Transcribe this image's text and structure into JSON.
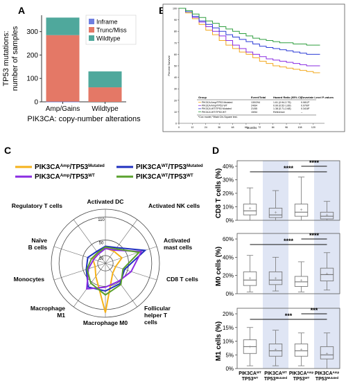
{
  "panels": {
    "A": "A",
    "B": "B",
    "C": "C",
    "D": "D"
  },
  "chart_data": [
    {
      "id": "A",
      "type": "bar",
      "stacked": true,
      "categories": [
        "Amp/Gains",
        "Wildtype"
      ],
      "series": [
        {
          "name": "Inframe",
          "color": "#6f7fe0",
          "values": [
            1,
            0
          ]
        },
        {
          "name": "Trunc/Miss",
          "color": "#e47866",
          "values": [
            284,
            62
          ]
        },
        {
          "name": "Wildtype",
          "color": "#4fa89c",
          "values": [
            75,
            68
          ]
        }
      ],
      "ylabel_line1": "TP53 mutations:",
      "ylabel_line2": "number of samples",
      "xlabel": "PIK3CA: copy-number alterations",
      "yticks": [
        0,
        100,
        200,
        300
      ],
      "ylim": [
        0,
        370
      ],
      "legend_position": "top-right"
    },
    {
      "id": "B",
      "type": "line",
      "ylabel": "Percent Survival",
      "xlabel": "Months",
      "xticks": [
        "0",
        "12",
        "24",
        "36",
        "48",
        "60",
        "72",
        "84",
        "96",
        "108",
        "120"
      ],
      "yticks": [
        "0",
        "10",
        "20",
        "30",
        "40",
        "50",
        "60",
        "70",
        "80",
        "90",
        "100"
      ],
      "xlim": [
        0,
        130
      ],
      "ylim": [
        0,
        100
      ],
      "series": [
        {
          "name": "PIK3CA Amp/TP53 Mutated",
          "color": "#f2a81c",
          "x": [
            0,
            6,
            12,
            18,
            24,
            30,
            36,
            42,
            48,
            54,
            60,
            66,
            72,
            78,
            84,
            90,
            96,
            102,
            108,
            114,
            120,
            126
          ],
          "y": [
            100,
            96,
            91,
            86,
            81,
            77,
            72,
            68,
            65,
            62,
            60,
            57,
            54,
            52,
            50,
            49,
            48,
            47,
            46,
            45,
            44,
            44
          ]
        },
        {
          "name": "PIK3CA Amp/TP53 WT",
          "color": "#8a2be2",
          "x": [
            0,
            6,
            12,
            18,
            24,
            30,
            36,
            42,
            48,
            54,
            60,
            66,
            72,
            78,
            84,
            90,
            96,
            102,
            108,
            114,
            120,
            126
          ],
          "y": [
            100,
            97,
            92,
            88,
            84,
            80,
            76,
            72,
            68,
            65,
            62,
            60,
            58,
            56,
            55,
            54,
            53,
            52,
            51,
            50,
            50,
            50
          ]
        },
        {
          "name": "PIK3CA WT/TP53 Mutated",
          "color": "#2b3bd6",
          "x": [
            0,
            6,
            12,
            18,
            24,
            30,
            36,
            42,
            48,
            54,
            60,
            66,
            72,
            78,
            84,
            90,
            96,
            102,
            108,
            114,
            120,
            126
          ],
          "y": [
            100,
            97,
            93,
            89,
            86,
            83,
            80,
            77,
            75,
            73,
            71,
            69,
            67,
            66,
            65,
            64,
            63,
            62,
            61,
            60,
            60,
            60
          ]
        },
        {
          "name": "PIK3CA WT/TP53 WT",
          "color": "#2e9e3e",
          "x": [
            0,
            6,
            12,
            18,
            24,
            30,
            36,
            42,
            48,
            54,
            60,
            66,
            72,
            78,
            84,
            90,
            96,
            102,
            108,
            114,
            120,
            126
          ],
          "y": [
            100,
            98,
            95,
            92,
            89,
            87,
            84,
            82,
            80,
            78,
            76,
            74,
            73,
            72,
            71,
            70,
            70,
            69,
            69,
            68,
            68,
            68
          ]
        }
      ],
      "table": {
        "headers": [
          "Group",
          "Event/Total",
          "Hazard Ratio (95% CI)¹",
          "Covariate Level P-values"
        ],
        "rows": [
          [
            "PIK3CA Amp/TP53 Mutated",
            "130/294",
            "1.61 (0.94-2.75)",
            "0.0812²"
          ],
          [
            "PIK3CA Amp/TP53 WT",
            "24/64",
            "0.99 (0.52-1.89)",
            "0.9799²"
          ],
          [
            "PIK3CA WT/TP53 Mutated",
            "21/55",
            "1.38 (0.71-2.68)",
            "0.3418²"
          ],
          [
            "PIK3CA WT/TP53 WT",
            "15/54",
            "Reference",
            "--"
          ]
        ],
        "footnote": "¹Cox model; ²Wald Chi-Square test."
      }
    },
    {
      "id": "C",
      "type": "radar",
      "legend": [
        {
          "base": "PIK3CA",
          "sup": "Amp",
          "base2": "/TP53",
          "sup2": "Mutated",
          "color": "#f5b21a"
        },
        {
          "base": "PIK3CA",
          "sup": "WT",
          "base2": "/TP53",
          "sup2": "Mutated",
          "color": "#1f2fbf"
        },
        {
          "base": "PIK3CA",
          "sup": "Amp",
          "base2": "/TP53",
          "sup2": "WT",
          "color": "#8a2be2"
        },
        {
          "base": "PIK3CA",
          "sup": "WT",
          "base2": "/TP53",
          "sup2": "WT",
          "color": "#5aa02c"
        }
      ],
      "axes": [
        "Activated DC",
        "Activated NK cells",
        "Activated mast cells",
        "CD8 T cells",
        "Follicular helper T cells",
        "Macrophage M0",
        "Macrophage M1",
        "Monocytes",
        "Naïve B cells",
        "Regulatory T cells"
      ],
      "rlim": [
        -10,
        130
      ],
      "ring_labels": [
        "110",
        "50",
        "10"
      ],
      "ring_values": [
        110,
        50,
        10
      ],
      "series": [
        {
          "name": "PIK3CA Amp/TP53 Mutated",
          "color": "#f5b21a",
          "values": [
            30,
            28,
            35,
            18,
            22,
            118,
            32,
            18,
            24,
            24
          ]
        },
        {
          "name": "PIK3CA WT/TP53 Mutated",
          "color": "#1f2fbf",
          "values": [
            34,
            40,
            98,
            42,
            55,
            62,
            66,
            42,
            38,
            28
          ]
        },
        {
          "name": "PIK3CA Amp/TP53 WT",
          "color": "#8a2be2",
          "values": [
            28,
            32,
            88,
            60,
            48,
            52,
            72,
            36,
            22,
            20
          ]
        },
        {
          "name": "PIK3CA WT/TP53 WT",
          "color": "#5aa02c",
          "values": [
            32,
            36,
            82,
            38,
            58,
            72,
            54,
            40,
            28,
            24
          ]
        }
      ]
    },
    {
      "id": "D",
      "type": "boxplot",
      "categories": [
        {
          "base": "PIK3CA",
          "sup": "WT",
          "base2": "TP53",
          "sup2": "WT"
        },
        {
          "base": "PIK3CA",
          "sup": "WT",
          "base2": "TP53",
          "sup2": "Mutated"
        },
        {
          "base": "PIK3CA",
          "sup": "Amp",
          "base2": "TP53",
          "sup2": "WT"
        },
        {
          "base": "PIK3CA",
          "sup": "Amp",
          "base2": "TP53",
          "sup2": "Mutated"
        }
      ],
      "shaded_columns": [
        1,
        3
      ],
      "panels": [
        {
          "ylabel": "CD8 T cells (%)",
          "yticks": [
            "0%",
            "10%",
            "20%",
            "30%",
            "40%"
          ],
          "yvals": [
            0,
            10,
            20,
            30,
            40
          ],
          "ylim": [
            0,
            40
          ],
          "boxes": [
            {
              "min": 0,
              "q1": 4,
              "median": 7,
              "q3": 12,
              "max": 24,
              "mean": 9
            },
            {
              "min": 0,
              "q1": 2,
              "median": 4,
              "q3": 9,
              "max": 22,
              "mean": 6
            },
            {
              "min": 0,
              "q1": 3,
              "median": 6,
              "q3": 12,
              "max": 32,
              "mean": 8
            },
            {
              "min": 0,
              "q1": 1,
              "median": 3,
              "q3": 6,
              "max": 14,
              "mean": 4
            }
          ],
          "sig": [
            {
              "from": 0,
              "to": 3,
              "label": "****"
            },
            {
              "from": 2,
              "to": 3,
              "label": "****"
            }
          ]
        },
        {
          "ylabel": "M0 cells (%)",
          "yticks": [
            "0%",
            "20%",
            "40%",
            "60%"
          ],
          "yvals": [
            0,
            20,
            40,
            60
          ],
          "ylim": [
            0,
            60
          ],
          "boxes": [
            {
              "min": 2,
              "q1": 9,
              "median": 15,
              "q3": 24,
              "max": 42,
              "mean": 17
            },
            {
              "min": 3,
              "q1": 10,
              "median": 15,
              "q3": 24,
              "max": 40,
              "mean": 17
            },
            {
              "min": 2,
              "q1": 8,
              "median": 13,
              "q3": 19,
              "max": 35,
              "mean": 15
            },
            {
              "min": 4,
              "q1": 14,
              "median": 21,
              "q3": 28,
              "max": 45,
              "mean": 22
            }
          ],
          "sig": [
            {
              "from": 0,
              "to": 3,
              "label": "****"
            },
            {
              "from": 2,
              "to": 3,
              "label": "****"
            }
          ]
        },
        {
          "ylabel": "M1 cells (%)",
          "yticks": [
            "0%",
            "5%",
            "10%",
            "15%",
            "20%"
          ],
          "yvals": [
            0,
            5,
            10,
            15,
            20
          ],
          "ylim": [
            0,
            20
          ],
          "boxes": [
            {
              "min": 1,
              "q1": 5.5,
              "median": 8,
              "q3": 10.5,
              "max": 15,
              "mean": 8
            },
            {
              "min": 1,
              "q1": 4.5,
              "median": 6.5,
              "q3": 9,
              "max": 14,
              "mean": 7
            },
            {
              "min": 1,
              "q1": 4.5,
              "median": 6.5,
              "q3": 9,
              "max": 13,
              "mean": 7
            },
            {
              "min": 0,
              "q1": 3.5,
              "median": 5,
              "q3": 8,
              "max": 13,
              "mean": 5.5
            }
          ],
          "sig": [
            {
              "from": 0,
              "to": 3,
              "label": "***"
            },
            {
              "from": 2,
              "to": 3,
              "label": "***"
            }
          ]
        }
      ]
    }
  ]
}
